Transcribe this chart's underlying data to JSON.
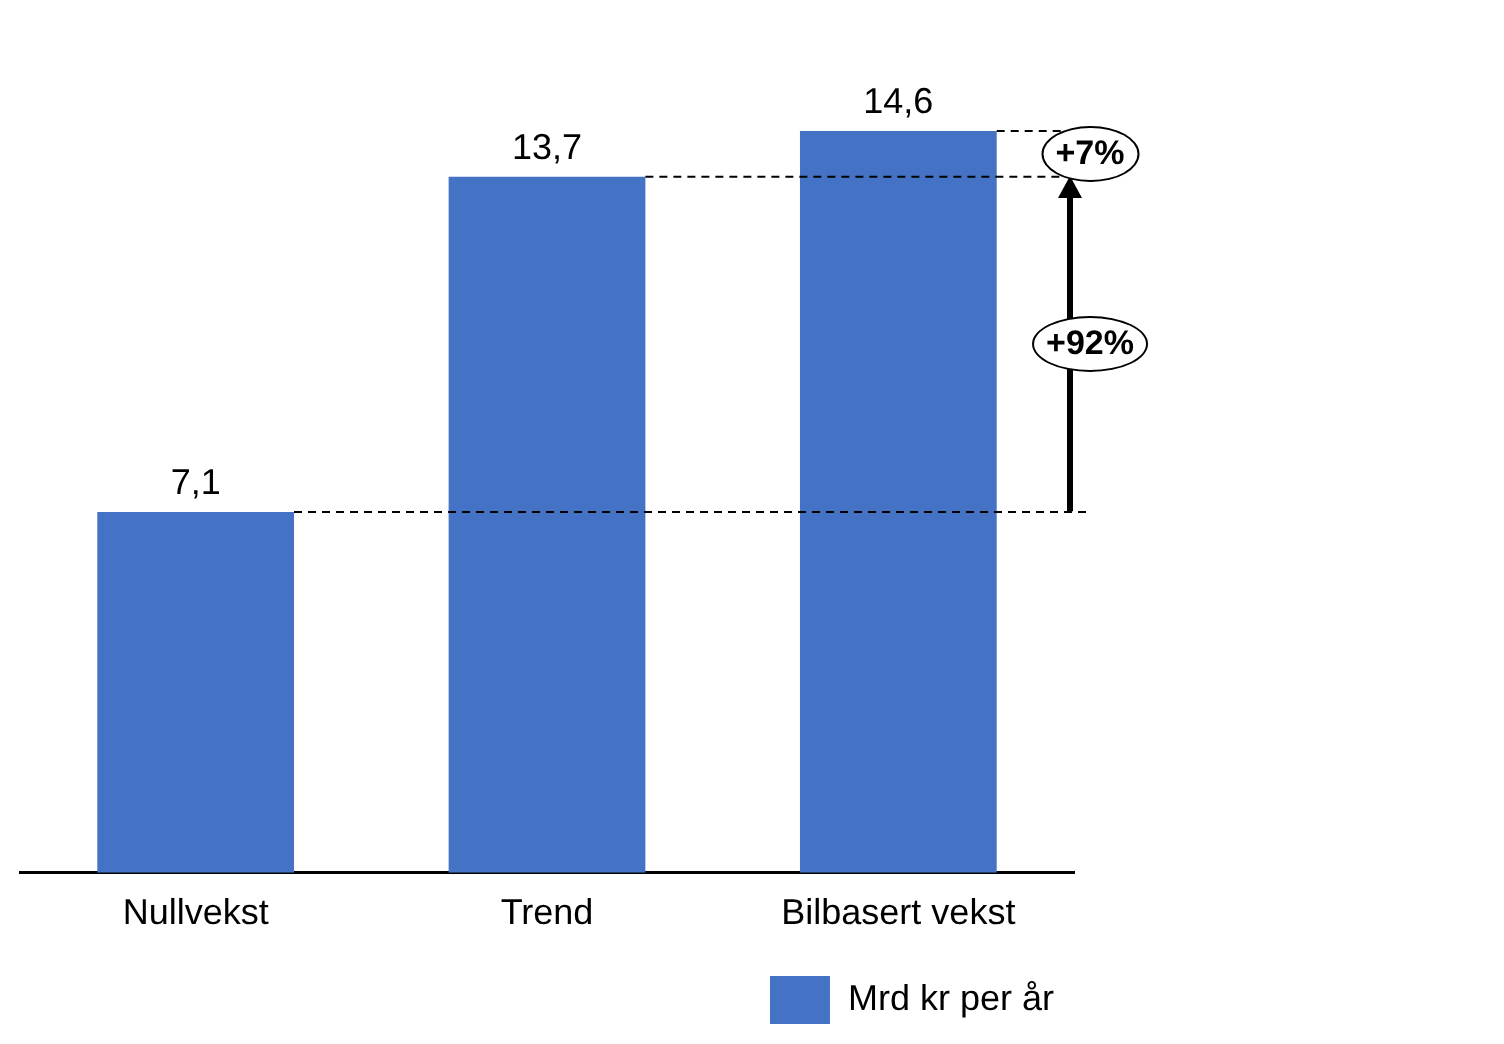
{
  "chart_data": {
    "type": "bar",
    "categories": [
      "Nullvekst",
      "Trend",
      "Bilbasert vekst"
    ],
    "series": [
      {
        "name": "Mrd kr per år",
        "color": "#4472c4",
        "values": [
          7.1,
          13.7,
          14.6
        ],
        "value_labels": [
          "7,1",
          "13,7",
          "14,6"
        ]
      }
    ],
    "legend": "bottom right",
    "grid": false,
    "ref_lines": [
      {
        "axis": "y",
        "value": 7.1,
        "line_style": "dashed",
        "color": "#000000"
      },
      {
        "axis": "y",
        "value": 13.7,
        "line_style": "dashed",
        "color": "#000000"
      },
      {
        "axis": "y",
        "value": 14.6,
        "line_style": "dashed",
        "color": "#000000"
      }
    ],
    "annotations": [
      "+7%",
      "+92%"
    ]
  }
}
